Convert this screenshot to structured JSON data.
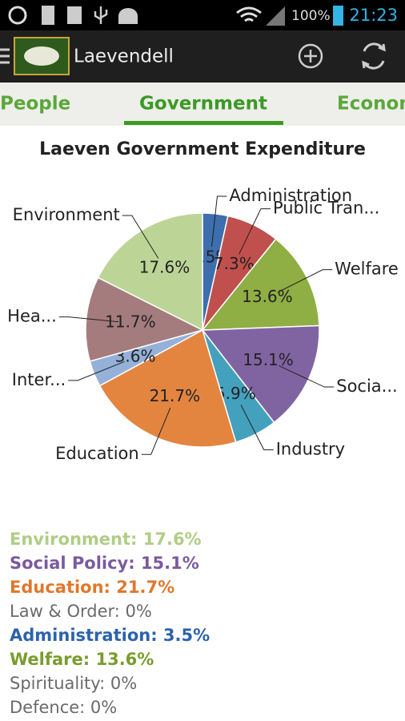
{
  "status_bar": {
    "battery": "100%",
    "time": "21:23"
  },
  "app_bar": {
    "title": "Laevendell"
  },
  "tabs": [
    "People",
    "Government",
    "Econom"
  ],
  "chart_data": {
    "type": "pie",
    "title": "Laeven Government Expenditure",
    "categories": [
      "Administration",
      "Public Tran...",
      "Welfare",
      "Socia...",
      "Industry",
      "Education",
      "Inter...",
      "Hea...",
      "Environment"
    ],
    "values": [
      3.5,
      7.3,
      13.6,
      15.1,
      5.9,
      21.7,
      3.6,
      11.7,
      17.6
    ],
    "value_labels": [
      "3.5%",
      "7.3%",
      "13.6%",
      "15.1%",
      "5.9%",
      "21.7%",
      "3.6%",
      "11.7%",
      "17.6%"
    ],
    "colors": [
      "#3d6ead",
      "#c0504d",
      "#8fae44",
      "#8064a2",
      "#44a1bd",
      "#e3853f",
      "#95b1d9",
      "#a57c7d",
      "#bcd596"
    ]
  },
  "legend": [
    {
      "text": "Environment: 17.6%",
      "color": "#b0cd86",
      "bold": true
    },
    {
      "text": "Social Policy: 15.1%",
      "color": "#7a5aa0",
      "bold": true
    },
    {
      "text": "Education: 21.7%",
      "color": "#e0782c",
      "bold": true
    },
    {
      "text": "Law & Order: 0%",
      "color": "#6a6a6a",
      "bold": false
    },
    {
      "text": "Administration: 3.5%",
      "color": "#2c63ac",
      "bold": true
    },
    {
      "text": "Welfare: 13.6%",
      "color": "#7a9c2e",
      "bold": true
    },
    {
      "text": "Spirituality: 0%",
      "color": "#6a6a6a",
      "bold": false
    },
    {
      "text": "Defence: 0%",
      "color": "#6a6a6a",
      "bold": false
    }
  ]
}
